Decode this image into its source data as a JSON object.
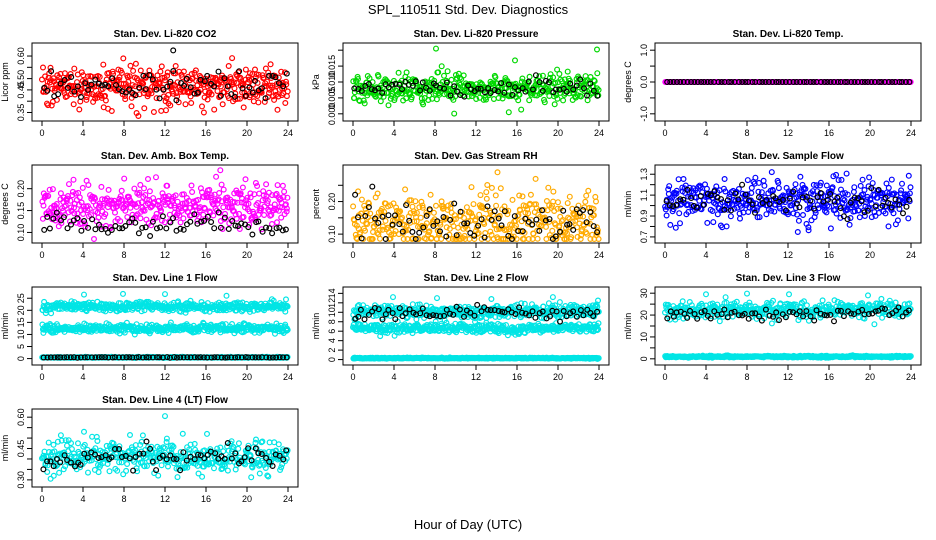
{
  "figure": {
    "title": "SPL_110511  Std. Dev. Diagnostics",
    "xlabel": "Hour of Day (UTC)"
  },
  "chart_data": [
    {
      "type": "scatter",
      "title": "Stan. Dev. Li-820 CO2",
      "ylabel": "Licor ppm",
      "xlim": [
        0,
        24
      ],
      "ylim": [
        0.33,
        0.64
      ],
      "xticks": [
        0,
        4,
        8,
        12,
        16,
        20,
        24
      ],
      "yticks": [
        0.35,
        0.4,
        0.45,
        0.5,
        0.55,
        0.6
      ],
      "ytick_labels": [
        "0.35",
        "",
        "0.45",
        "0.50",
        "",
        "0.60"
      ],
      "cloud_color": "#ff0000",
      "clouds": [
        {
          "mean": 0.465,
          "sd": 0.045
        }
      ],
      "black_sd_scale": 0.7,
      "outliers": [
        {
          "x": 12.8,
          "y": 0.625
        },
        {
          "x": 12.1,
          "y": 0.36
        },
        {
          "x": 15.8,
          "y": 0.35
        }
      ]
    },
    {
      "type": "scatter",
      "title": "Stan. Dev. Li-820 Pressure",
      "ylabel": "kPa",
      "xlim": [
        0,
        24
      ],
      "ylim": [
        -0.001,
        0.021
      ],
      "xticks": [
        0,
        4,
        8,
        12,
        16,
        20,
        24
      ],
      "yticks": [
        0.0,
        0.005,
        0.01,
        0.015,
        0.02
      ],
      "ytick_labels": [
        "0.000",
        "0.005",
        "0.010",
        "0.015",
        ""
      ],
      "cloud_color": "#00d800",
      "clouds": [
        {
          "mean": 0.008,
          "sd": 0.0022
        }
      ],
      "black_sd_scale": 0.6,
      "outliers": [
        {
          "x": 8.1,
          "y": 0.0205
        },
        {
          "x": 23.8,
          "y": 0.0202
        },
        {
          "x": 15.8,
          "y": 0.0168
        },
        {
          "x": 15.2,
          "y": 0.0005
        }
      ]
    },
    {
      "type": "scatter",
      "title": "Stan. Dev. Li-820 Temp.",
      "ylabel": "degrees C",
      "xlim": [
        0,
        24
      ],
      "ylim": [
        -1.1,
        1.1
      ],
      "xticks": [
        0,
        4,
        8,
        12,
        16,
        20,
        24
      ],
      "yticks": [
        -1.0,
        -0.5,
        0.0,
        0.5,
        1.0
      ],
      "ytick_labels": [
        "-1.0",
        "",
        "0.0",
        "",
        "1.0"
      ],
      "cloud_color": "#ff00ff",
      "clouds": [
        {
          "mean": 0.0,
          "sd": 0.0
        }
      ],
      "black_sd_scale": 0,
      "outliers": []
    },
    {
      "type": "scatter",
      "title": "Stan. Dev. Amb. Box Temp.",
      "ylabel": "degrees C",
      "xlim": [
        0,
        24
      ],
      "ylim": [
        0.085,
        0.245
      ],
      "xticks": [
        0,
        4,
        8,
        12,
        16,
        20,
        24
      ],
      "yticks": [
        0.1,
        0.15,
        0.2
      ],
      "ytick_labels": [
        "0.10",
        "0.15",
        "0.20"
      ],
      "cloud_color": "#ff00ff",
      "clouds": [
        {
          "mean": 0.16,
          "sd": 0.025
        }
      ],
      "black_mean": 0.117,
      "black_sd": 0.01,
      "outliers": []
    },
    {
      "type": "scatter",
      "title": "Stan. Dev. Gas Stream RH",
      "ylabel": "percent",
      "xlim": [
        0,
        24
      ],
      "ylim": [
        0.085,
        0.3
      ],
      "xticks": [
        0,
        4,
        8,
        12,
        16,
        20,
        24
      ],
      "yticks": [
        0.1,
        0.15,
        0.2,
        0.25
      ],
      "ytick_labels": [
        "0.10",
        "",
        "0.20",
        ""
      ],
      "cloud_color": "#ffaa00",
      "clouds": [
        {
          "mean": 0.14,
          "sd": 0.045
        }
      ],
      "black_sd_scale": 0.8,
      "outliers": [
        {
          "x": 14.1,
          "y": 0.29
        }
      ]
    },
    {
      "type": "scatter",
      "title": "Stan. Dev. Sample Flow",
      "ylabel": "ml/min",
      "xlim": [
        0,
        24
      ],
      "ylim": [
        0.68,
        1.35
      ],
      "xticks": [
        0,
        4,
        8,
        12,
        16,
        20,
        24
      ],
      "yticks": [
        0.7,
        0.8,
        0.9,
        1.0,
        1.1,
        1.2,
        1.3
      ],
      "ytick_labels": [
        "0.7",
        "",
        "0.9",
        "",
        "1.1",
        "",
        "1.3"
      ],
      "cloud_color": "#0000ff",
      "clouds": [
        {
          "mean": 1.05,
          "sd": 0.1
        }
      ],
      "black_sd_scale": 0.6,
      "outliers": []
    },
    {
      "type": "scatter",
      "title": "Stan. Dev. Line 1 Flow",
      "ylabel": "ml/min",
      "xlim": [
        0,
        24
      ],
      "ylim": [
        -1,
        28
      ],
      "xticks": [
        0,
        4,
        8,
        12,
        16,
        20,
        24
      ],
      "yticks": [
        0,
        5,
        10,
        15,
        20,
        25
      ],
      "ytick_labels": [
        "0",
        "5",
        "10",
        "15",
        "20",
        "25"
      ],
      "cloud_color": "#00e5e5",
      "clouds": [
        {
          "mean": 21.5,
          "sd": 1.0
        },
        {
          "mean": 12.5,
          "sd": 0.9
        },
        {
          "mean": 0.5,
          "sd": 0.1
        }
      ],
      "black_mean": 0.5,
      "black_sd": 0.05,
      "outliers": [
        {
          "x": 4.1,
          "y": 26.5
        },
        {
          "x": 7.9,
          "y": 26.8
        },
        {
          "x": 12.0,
          "y": 26.7
        },
        {
          "x": 23.8,
          "y": 24.5
        },
        {
          "x": 18.0,
          "y": 26.0
        }
      ]
    },
    {
      "type": "scatter",
      "title": "Stan. Dev. Line 2 Flow",
      "ylabel": "ml/min",
      "xlim": [
        0,
        24
      ],
      "ylim": [
        -0.3,
        14.5
      ],
      "xticks": [
        0,
        4,
        8,
        12,
        16,
        20,
        24
      ],
      "yticks": [
        0,
        2,
        4,
        6,
        8,
        10,
        12,
        14
      ],
      "ytick_labels": [
        "0",
        "2",
        "4",
        "6",
        "8",
        "10",
        "12",
        "14"
      ],
      "cloud_color": "#00e5e5",
      "clouds": [
        {
          "mean": 10.2,
          "sd": 0.7
        },
        {
          "mean": 6.6,
          "sd": 0.5
        },
        {
          "mean": 0.3,
          "sd": 0.05
        }
      ],
      "black_mean": 9.8,
      "black_sd": 0.7,
      "outliers": [
        {
          "x": 3.9,
          "y": 13.2
        },
        {
          "x": 8.2,
          "y": 13.0
        },
        {
          "x": 13.5,
          "y": 12.8
        },
        {
          "x": 19.5,
          "y": 13.2
        },
        {
          "x": 23.9,
          "y": 12.5
        }
      ]
    },
    {
      "type": "scatter",
      "title": "Stan. Dev. Line 3 Flow",
      "ylabel": "ml/min",
      "xlim": [
        0,
        24
      ],
      "ylim": [
        -1,
        31
      ],
      "xticks": [
        0,
        4,
        8,
        12,
        16,
        20,
        24
      ],
      "yticks": [
        0,
        5,
        10,
        15,
        20,
        25,
        30
      ],
      "ytick_labels": [
        "0",
        "",
        "10",
        "",
        "20",
        "",
        "30"
      ],
      "cloud_color": "#00e5e5",
      "clouds": [
        {
          "mean": 22.5,
          "sd": 1.8
        },
        {
          "mean": 1.0,
          "sd": 0.2
        }
      ],
      "black_mean": 20.5,
      "black_sd": 1.4,
      "outliers": [
        {
          "x": 4.0,
          "y": 29.5
        },
        {
          "x": 8.0,
          "y": 29.8
        },
        {
          "x": 12.1,
          "y": 29.5
        },
        {
          "x": 19.8,
          "y": 29.0
        }
      ]
    },
    {
      "type": "scatter",
      "title": "Stan. Dev. Line 4 (LT) Flow",
      "ylabel": "ml/min",
      "xlim": [
        0,
        24
      ],
      "ylim": [
        0.285,
        0.62
      ],
      "xticks": [
        0,
        4,
        8,
        12,
        16,
        20,
        24
      ],
      "yticks": [
        0.3,
        0.35,
        0.4,
        0.45,
        0.5,
        0.55,
        0.6
      ],
      "ytick_labels": [
        "0.30",
        "",
        "",
        "0.45",
        "",
        "",
        "0.60"
      ],
      "cloud_color": "#00e5e5",
      "clouds": [
        {
          "mean": 0.405,
          "sd": 0.04
        }
      ],
      "black_sd_scale": 0.7,
      "outliers": [
        {
          "x": 12.0,
          "y": 0.605
        },
        {
          "x": 4.1,
          "y": 0.53
        },
        {
          "x": 16.1,
          "y": 0.52
        }
      ]
    }
  ]
}
